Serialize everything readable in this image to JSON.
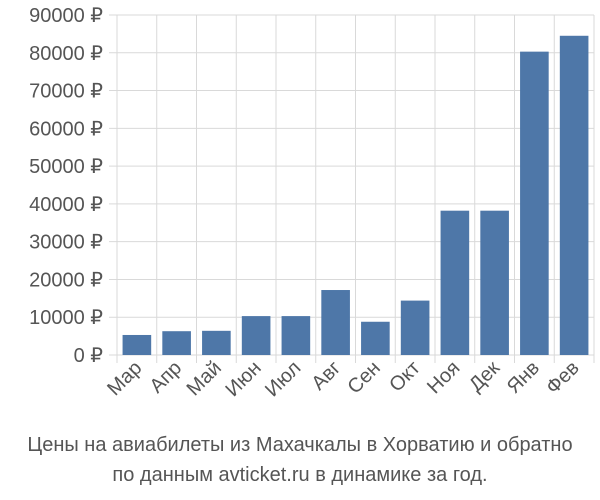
{
  "chart_data": {
    "type": "bar",
    "categories": [
      "Мар",
      "Апр",
      "Май",
      "Июн",
      "Июл",
      "Авг",
      "Сен",
      "Окт",
      "Ноя",
      "Дек",
      "Янв",
      "Фев"
    ],
    "values": [
      5300,
      6300,
      6400,
      10300,
      10300,
      17200,
      8800,
      14400,
      38200,
      38200,
      80300,
      84500
    ],
    "ylim": [
      0,
      90000
    ],
    "yticks": [
      0,
      10000,
      20000,
      30000,
      40000,
      50000,
      60000,
      70000,
      80000,
      90000
    ],
    "tick_suffix": " ₽",
    "grid": true,
    "bar_color": "#4e77a8",
    "grid_color": "#d9d9d9",
    "title": "",
    "xlabel": "",
    "ylabel": ""
  },
  "caption": {
    "line1": "Цены на авиабилеты из Махачкалы в Хорватию и обратно",
    "line2": "по данным avticket.ru в динамике за год."
  }
}
